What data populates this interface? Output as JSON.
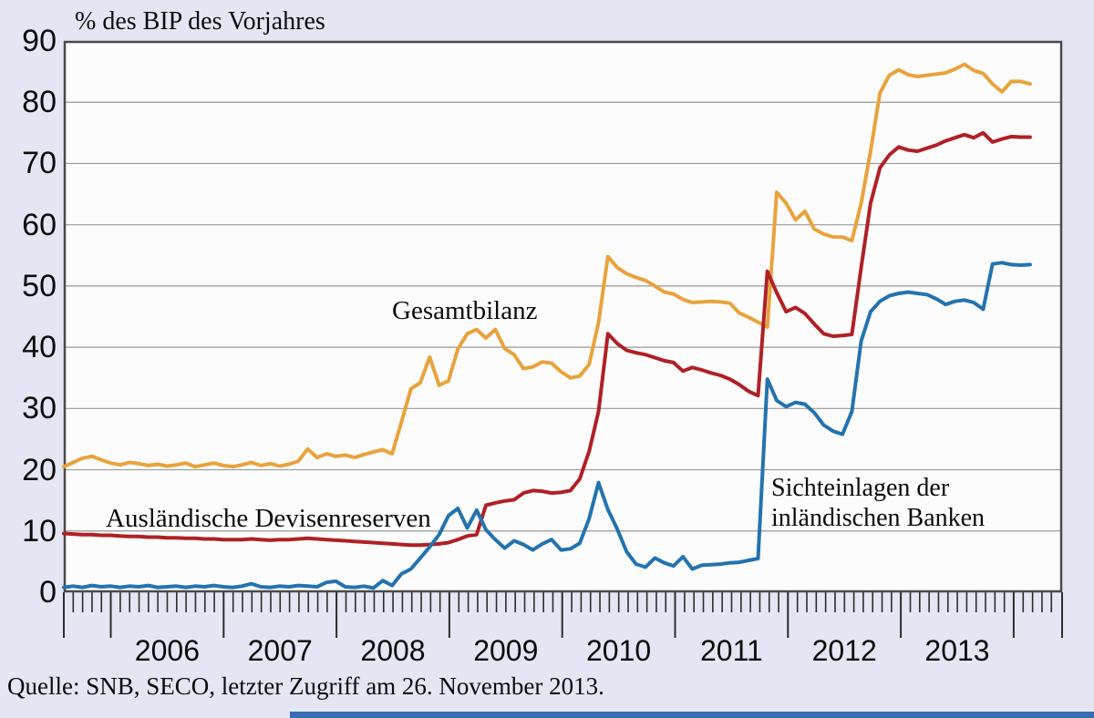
{
  "title": "% des BIP des Vorjahres",
  "source_note": "Quelle: SNB, SECO, letzter Zugriff am 26. November 2013.",
  "labels": {
    "gesamtbilanz": "Gesamtbilanz",
    "devisenreserven": "Ausländische Devisenreserven",
    "sichteinlagen_line1": "Sichteinlagen der",
    "sichteinlagen_line2": "inländischen Banken"
  },
  "colors": {
    "background": "#E4E7F3",
    "plot_background": "#FCFCFC",
    "grid": "#999999",
    "border": "#4A4A4A",
    "tick": "#2B2B2B",
    "text": "#0B0B0B",
    "bottom_bar": "#3A6DB3",
    "gesamtbilanz": "#E8A33C",
    "devisenreserven": "#B02025",
    "sichteinlagen": "#2473AE"
  },
  "chart_data": {
    "type": "line",
    "title": "% des BIP des Vorjahres",
    "ylabel": "% des BIP des Vorjahres",
    "ylim": [
      0,
      90
    ],
    "y_ticks": [
      0,
      10,
      20,
      30,
      40,
      50,
      60,
      70,
      80,
      90
    ],
    "x_tick_labels": [
      "2006",
      "2007",
      "2008",
      "2009",
      "2010",
      "2011",
      "2012",
      "2013"
    ],
    "x_resolution": "monthly",
    "x_start": "2005-08",
    "grid": "horizontal",
    "legend": "inline-annotations",
    "series": [
      {
        "name": "Gesamtbilanz",
        "color": "#E8A33C",
        "values": [
          20.5,
          21.2,
          21.9,
          22.2,
          21.6,
          21.1,
          20.8,
          21.2,
          21.0,
          20.7,
          20.9,
          20.6,
          20.8,
          21.1,
          20.5,
          20.8,
          21.1,
          20.7,
          20.5,
          20.8,
          21.2,
          20.7,
          21.0,
          20.6,
          20.9,
          21.4,
          23.4,
          22.0,
          22.6,
          22.2,
          22.4,
          22.0,
          22.5,
          22.9,
          23.3,
          22.6,
          27.8,
          33.2,
          34.2,
          38.4,
          33.8,
          34.5,
          39.7,
          42.2,
          42.9,
          41.5,
          42.9,
          39.8,
          38.8,
          36.5,
          36.8,
          37.6,
          37.4,
          36.0,
          35.0,
          35.3,
          37.2,
          44.0,
          54.8,
          53.0,
          52.0,
          51.4,
          50.9,
          50.0,
          49.0,
          48.7,
          47.8,
          47.3,
          47.4,
          47.5,
          47.4,
          47.2,
          45.6,
          44.9,
          44.1,
          43.3,
          65.3,
          63.5,
          60.8,
          62.2,
          59.3,
          58.5,
          58.0,
          58.0,
          57.4,
          63.5,
          72.0,
          81.5,
          84.4,
          85.3,
          84.5,
          84.2,
          84.4,
          84.6,
          84.8,
          85.4,
          86.2,
          85.2,
          84.7,
          83.0,
          81.7,
          83.4,
          83.4,
          83.0
        ]
      },
      {
        "name": "Ausländische Devisenreserven",
        "color": "#B02025",
        "values": [
          9.6,
          9.5,
          9.4,
          9.4,
          9.3,
          9.3,
          9.2,
          9.1,
          9.1,
          9.0,
          9.0,
          8.9,
          8.9,
          8.8,
          8.8,
          8.7,
          8.7,
          8.6,
          8.6,
          8.6,
          8.7,
          8.6,
          8.5,
          8.6,
          8.6,
          8.7,
          8.8,
          8.7,
          8.6,
          8.5,
          8.4,
          8.3,
          8.2,
          8.1,
          8.0,
          7.9,
          7.8,
          7.7,
          7.7,
          7.8,
          7.9,
          8.1,
          8.6,
          9.2,
          9.4,
          14.2,
          14.6,
          14.9,
          15.1,
          16.2,
          16.6,
          16.5,
          16.2,
          16.3,
          16.6,
          18.5,
          23.0,
          29.5,
          42.2,
          40.6,
          39.5,
          39.1,
          38.8,
          38.3,
          37.8,
          37.5,
          36.1,
          36.7,
          36.3,
          35.8,
          35.4,
          34.8,
          33.9,
          32.8,
          32.1,
          52.4,
          48.9,
          45.8,
          46.5,
          45.5,
          43.8,
          42.2,
          41.8,
          41.9,
          42.1,
          53.0,
          63.5,
          69.3,
          71.4,
          72.7,
          72.2,
          72.0,
          72.5,
          73.0,
          73.7,
          74.2,
          74.7,
          74.2,
          75.0,
          73.5,
          74.0,
          74.4,
          74.3,
          74.3
        ]
      },
      {
        "name": "Sichteinlagen der inländischen Banken",
        "color": "#2473AE",
        "values": [
          0.8,
          1.0,
          0.8,
          1.1,
          0.9,
          1.0,
          0.8,
          1.0,
          0.9,
          1.1,
          0.8,
          0.9,
          1.0,
          0.8,
          1.0,
          0.9,
          1.1,
          0.9,
          0.8,
          1.0,
          1.4,
          0.9,
          0.8,
          1.0,
          0.9,
          1.1,
          1.0,
          0.9,
          1.6,
          1.8,
          0.9,
          0.8,
          1.0,
          0.7,
          1.9,
          1.1,
          3.0,
          3.8,
          5.6,
          7.4,
          9.4,
          12.5,
          13.7,
          10.5,
          13.4,
          10.2,
          8.6,
          7.2,
          8.4,
          7.8,
          6.9,
          7.9,
          8.6,
          6.9,
          7.1,
          8.0,
          12.0,
          17.9,
          13.5,
          10.3,
          6.6,
          4.6,
          4.1,
          5.6,
          4.8,
          4.3,
          5.8,
          3.8,
          4.4,
          4.5,
          4.6,
          4.8,
          4.9,
          5.2,
          5.5,
          34.8,
          31.3,
          30.3,
          31.0,
          30.7,
          29.3,
          27.3,
          26.3,
          25.8,
          29.5,
          41.0,
          45.8,
          47.5,
          48.4,
          48.8,
          49.0,
          48.8,
          48.6,
          47.9,
          47.0,
          47.5,
          47.7,
          47.3,
          46.2,
          53.6,
          53.8,
          53.5,
          53.4,
          53.5
        ]
      }
    ]
  }
}
